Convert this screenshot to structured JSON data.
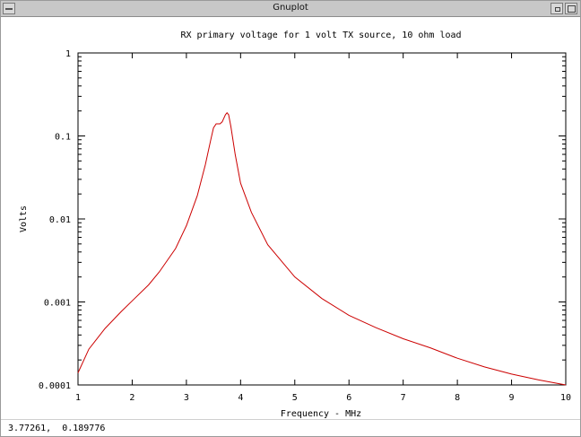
{
  "window": {
    "title": "Gnuplot"
  },
  "status": {
    "coordinates": "3.77261,  0.189776"
  },
  "colors": {
    "curve": "#cc0000",
    "axes": "#000000"
  },
  "chart_data": {
    "type": "line",
    "title": "RX primary voltage for 1 volt TX source, 10 ohm load",
    "xlabel": "Frequency - MHz",
    "ylabel": "Volts",
    "xlim": [
      1,
      10
    ],
    "ylim": [
      0.0001,
      1
    ],
    "yscale": "log",
    "grid": false,
    "x_ticks": [
      1,
      2,
      3,
      4,
      5,
      6,
      7,
      8,
      9,
      10
    ],
    "x_tick_labels": [
      "1",
      "2",
      "3",
      "4",
      "5",
      "6",
      "7",
      "8",
      "9",
      "10"
    ],
    "y_ticks": [
      0.0001,
      0.001,
      0.01,
      0.1,
      1
    ],
    "y_tick_labels": [
      "0.0001",
      "0.001",
      "0.01",
      "0.1",
      "1"
    ],
    "series": [
      {
        "x": [
          1.0,
          1.2,
          1.5,
          1.8,
          2.0,
          2.3,
          2.5,
          2.8,
          3.0,
          3.2,
          3.35,
          3.45,
          3.5,
          3.55,
          3.62,
          3.66,
          3.72,
          3.75,
          3.78,
          3.82,
          3.9,
          4.0,
          4.2,
          4.5,
          5.0,
          5.5,
          6.0,
          6.5,
          7.0,
          7.5,
          8.0,
          8.5,
          9.0,
          9.5,
          10.0
        ],
        "y": [
          0.00014,
          0.00027,
          0.00048,
          0.00077,
          0.00103,
          0.0016,
          0.0023,
          0.0044,
          0.0083,
          0.019,
          0.045,
          0.09,
          0.125,
          0.14,
          0.14,
          0.148,
          0.18,
          0.19,
          0.18,
          0.13,
          0.06,
          0.027,
          0.012,
          0.0049,
          0.002,
          0.0011,
          0.00069,
          0.00049,
          0.00036,
          0.00028,
          0.00021,
          0.000165,
          0.000135,
          0.000115,
          0.0001
        ]
      }
    ]
  }
}
